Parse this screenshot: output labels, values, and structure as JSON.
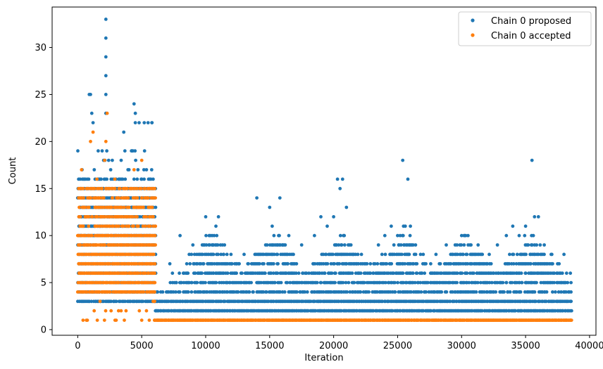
{
  "chart_data": {
    "type": "scatter",
    "title": "",
    "xlabel": "Iteration",
    "ylabel": "Count",
    "xlim": [
      -2000,
      40500
    ],
    "ylim": [
      -0.6,
      34.3
    ],
    "xticks": [
      0,
      5000,
      10000,
      15000,
      20000,
      25000,
      30000,
      35000,
      40000
    ],
    "yticks": [
      0,
      5,
      10,
      15,
      20,
      25,
      30
    ],
    "grid": false,
    "legend_position": "top-right",
    "series": [
      {
        "name": "Chain 0 proposed",
        "color": "#1f77b4",
        "note_points": "dense integer-valued scatter, approx. 1 point per 100 iterations per level",
        "x": [
          0,
          200,
          400,
          600,
          800,
          1000,
          1200,
          1400,
          1600,
          1800,
          2000,
          2200,
          2400,
          2600,
          2800,
          3000,
          3200,
          3400,
          3600,
          3800,
          4000,
          4200,
          4400,
          4600,
          4800,
          5000,
          5200,
          5400,
          5600,
          5800,
          2200,
          2200,
          2200,
          2200,
          2200,
          900,
          1100,
          4500,
          4500,
          5500,
          5800,
          7200,
          8000,
          9000,
          10000,
          10500,
          10800,
          11000,
          12000,
          13000,
          14000,
          15000,
          15200,
          15800,
          16500,
          17500,
          18500,
          19000,
          19500,
          20000,
          20300,
          20500,
          20700,
          21000,
          21500,
          22500,
          23500,
          24000,
          24500,
          25000,
          25400,
          25600,
          25800,
          26000,
          27000,
          28000,
          28800,
          29500,
          30000,
          30500,
          31000,
          32000,
          32800,
          33500,
          34000,
          34500,
          35000,
          35500,
          35700,
          36000,
          37000,
          37500,
          38000,
          38500
        ],
        "y": [
          14,
          15,
          13,
          16,
          15,
          25,
          22,
          14,
          19,
          13,
          15,
          33,
          12,
          14,
          13,
          15,
          16,
          14,
          21,
          13,
          14,
          19,
          24,
          13,
          22,
          16,
          22,
          14,
          15,
          22,
          31,
          29,
          27,
          25,
          23,
          25,
          23,
          23,
          22,
          22,
          22,
          7,
          10,
          9,
          12,
          10,
          11,
          12,
          7,
          8,
          14,
          13,
          11,
          14,
          10,
          9,
          10,
          12,
          11,
          12,
          16,
          15,
          16,
          13,
          8,
          7,
          9,
          10,
          11,
          10,
          18,
          11,
          16,
          11,
          8,
          8,
          9,
          9,
          10,
          10,
          8,
          7,
          9,
          10,
          11,
          10,
          11,
          18,
          12,
          12,
          8,
          7,
          8,
          6
        ]
      },
      {
        "name": "Chain 0 accepted",
        "color": "#ff7f0e",
        "note_points": "dense integer-valued scatter, approx. 1 point per 100 iterations per level",
        "x": [
          0,
          300,
          600,
          900,
          1000,
          1200,
          1500,
          1800,
          2100,
          2200,
          2300,
          2600,
          2900,
          3200,
          3500,
          3800,
          4100,
          4400,
          4700,
          5000,
          5300,
          5600,
          5900,
          6000,
          8000,
          12000,
          16000,
          20000,
          24000,
          28000,
          32000,
          36000,
          38500
        ],
        "y": [
          10,
          17,
          12,
          14,
          20,
          21,
          16,
          12,
          18,
          20,
          23,
          13,
          16,
          14,
          12,
          11,
          15,
          17,
          13,
          18,
          14,
          12,
          15,
          1,
          1,
          1,
          1,
          1,
          1,
          1,
          1,
          1,
          1
        ]
      }
    ]
  }
}
